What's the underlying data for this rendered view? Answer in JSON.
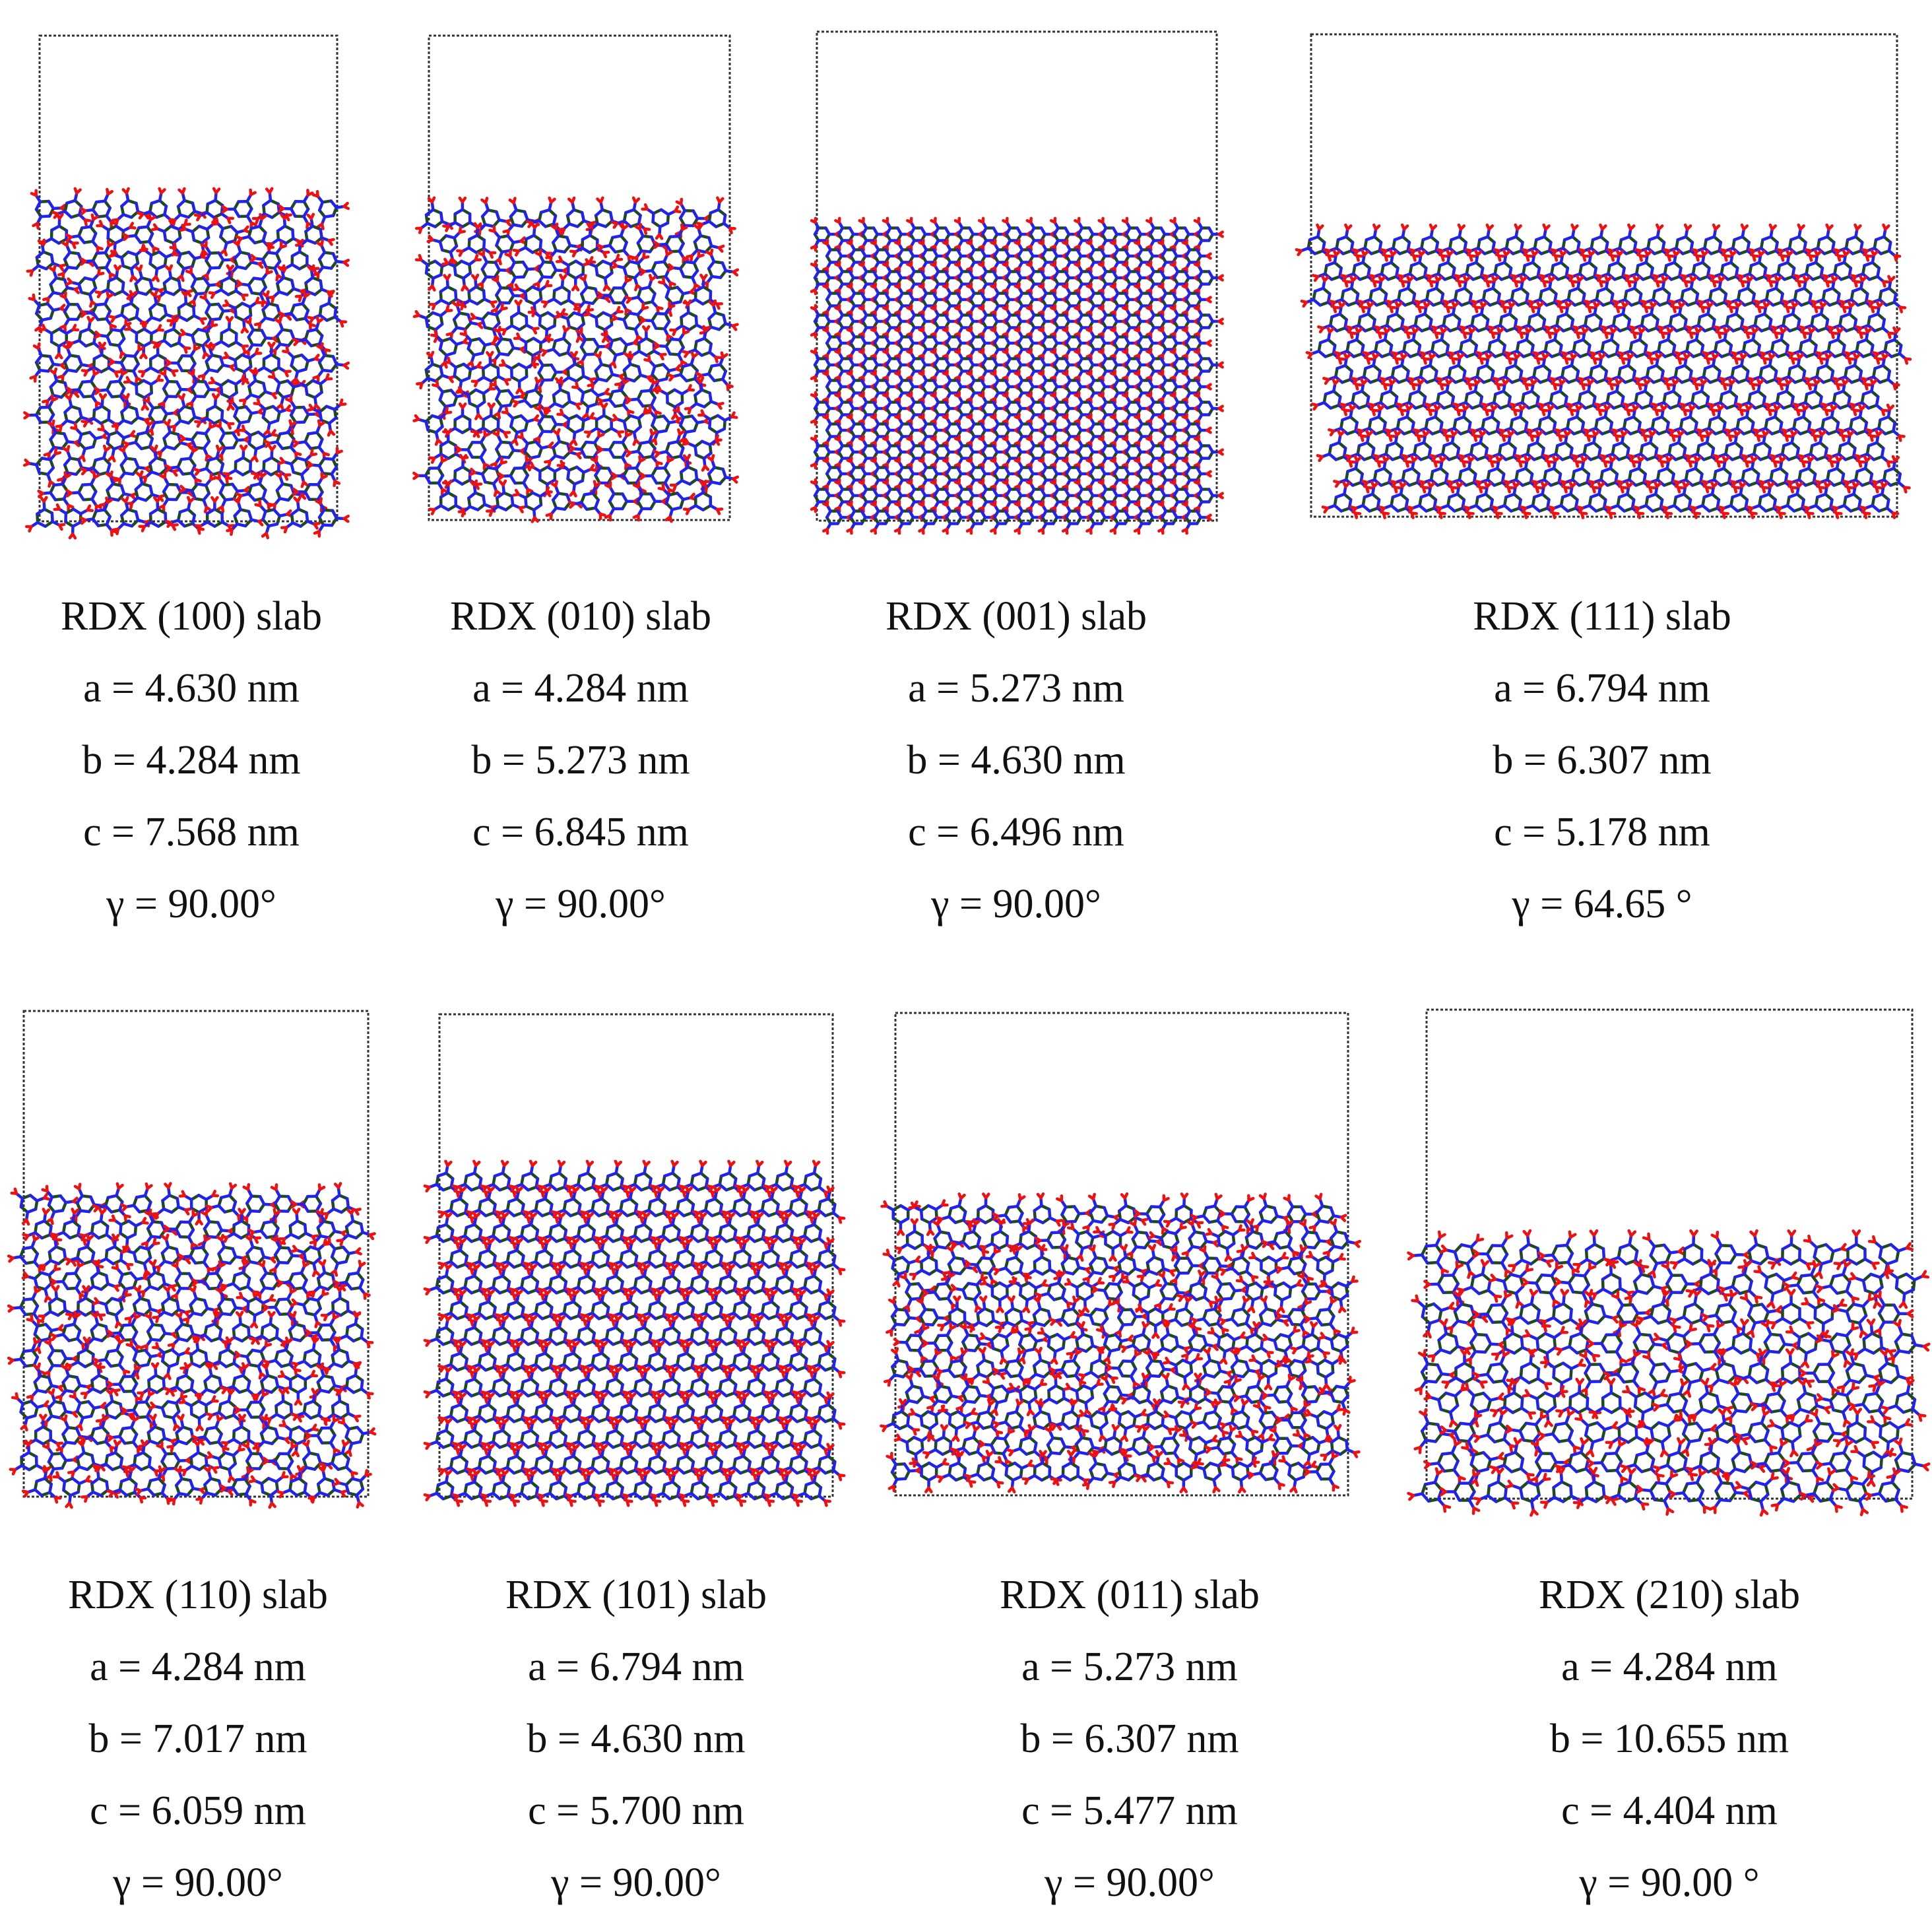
{
  "colors": {
    "box_border": "#333333",
    "carbon": "#1f4a1f",
    "nitrogen": "#2222ee",
    "oxygen": "#ee1111",
    "axis_label": "#7fdc7f"
  },
  "panels": [
    {
      "title": "RDX (100) slab",
      "a": "a = 4.630 nm",
      "b": "b = 4.284 nm",
      "c": "c = 7.568 nm",
      "gamma": "γ = 90.00°",
      "pattern": "chevron"
    },
    {
      "title": "RDX (010) slab",
      "a": "a = 4.284 nm",
      "b": "b = 5.273 nm",
      "c": "c = 6.845 nm",
      "gamma": "γ = 90.00°",
      "pattern": "rows"
    },
    {
      "title": "RDX (001) slab",
      "a": "a = 5.273 nm",
      "b": "b = 4.630 nm",
      "c": "c = 6.496 nm",
      "gamma": "γ = 90.00°",
      "pattern": "grid"
    },
    {
      "title": "RDX (111) slab",
      "a": "a = 6.794 nm",
      "b": "b = 6.307 nm",
      "c": "c = 5.178 nm",
      "gamma": "γ = 64.65 °",
      "pattern": "diagonal"
    },
    {
      "title": "RDX (110) slab",
      "a": "a = 4.284 nm",
      "b": "b = 7.017 nm",
      "c": "c = 6.059 nm",
      "gamma": "γ = 90.00°",
      "pattern": "rings"
    },
    {
      "title": "RDX (101) slab",
      "a": "a = 6.794 nm",
      "b": "b = 4.630 nm",
      "c": "c = 5.700 nm",
      "gamma": "γ = 90.00°",
      "pattern": "lattice"
    },
    {
      "title": "RDX (011) slab",
      "a": "a = 5.273 nm",
      "b": "b = 6.307 nm",
      "c": "c = 5.477 nm",
      "gamma": "γ = 90.00°",
      "pattern": "clusters"
    },
    {
      "title": "RDX (210) slab",
      "a": "a = 4.284 nm",
      "b": "b = 10.655 nm",
      "c": "c = 4.404 nm",
      "gamma": "γ = 90.00 °",
      "pattern": "dense"
    }
  ]
}
